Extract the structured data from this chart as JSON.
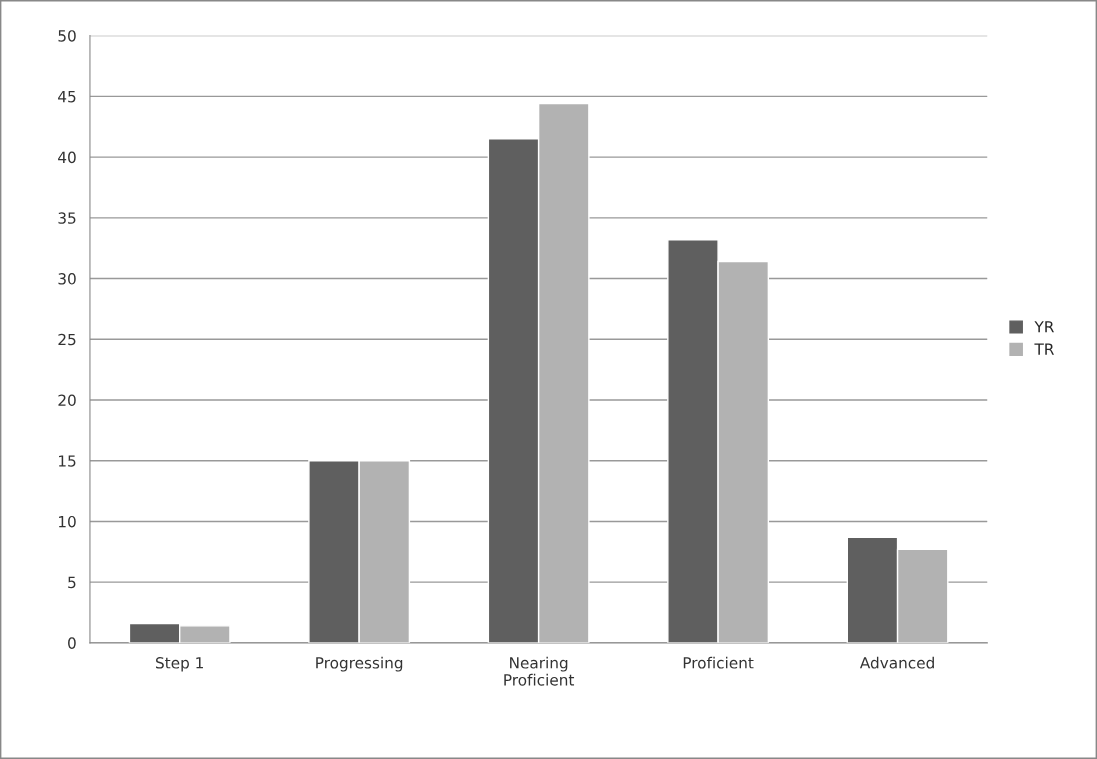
{
  "chart_data": {
    "type": "bar",
    "categories": [
      "Step 1",
      "Progressing",
      "Nearing\nProficient",
      "Proficient",
      "Advanced"
    ],
    "series": [
      {
        "name": "YR",
        "color": "#5f5f5f",
        "values": [
          1.6,
          15,
          41.5,
          33.2,
          8.7
        ]
      },
      {
        "name": "TR",
        "color": "#b2b2b2",
        "values": [
          1.4,
          15,
          44.4,
          31.4,
          7.7
        ]
      }
    ],
    "ylim": [
      0,
      50
    ],
    "yticks": [
      0,
      5,
      10,
      15,
      20,
      25,
      30,
      35,
      40,
      45,
      50
    ],
    "grid": "y",
    "legend": "right"
  }
}
